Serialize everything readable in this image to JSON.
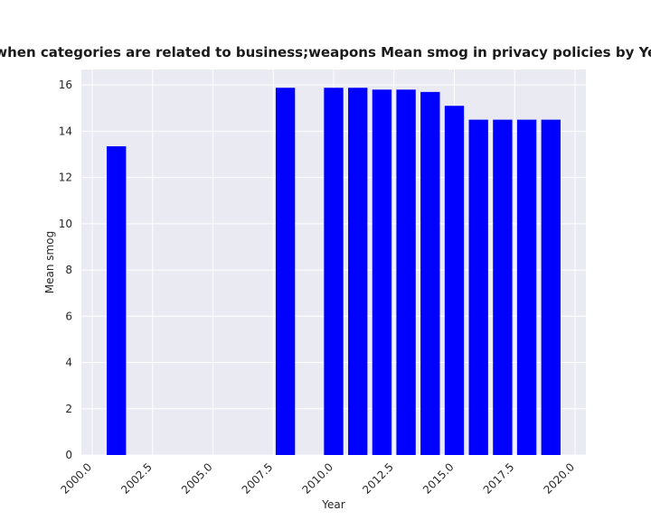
{
  "chart_data": {
    "type": "bar",
    "title": "when categories are related to business;weapons Mean smog in privacy policies by Year",
    "xlabel": "Year",
    "ylabel": "Mean smog",
    "x": [
      2001,
      2008,
      2010,
      2011,
      2012,
      2013,
      2014,
      2015,
      2016,
      2017,
      2018,
      2019
    ],
    "values": [
      13.35,
      15.88,
      15.88,
      15.88,
      15.8,
      15.8,
      15.7,
      15.1,
      14.5,
      14.5,
      14.5,
      14.5
    ],
    "xlim": [
      1999.55,
      2020.45
    ],
    "ylim": [
      0,
      16.67
    ],
    "xticks": [
      2000.0,
      2002.5,
      2005.0,
      2007.5,
      2010.0,
      2012.5,
      2015.0,
      2017.5,
      2020.0
    ],
    "xtick_labels": [
      "2000.0",
      "2002.5",
      "2005.0",
      "2007.5",
      "2010.0",
      "2012.5",
      "2015.0",
      "2017.5",
      "2020.0"
    ],
    "yticks": [
      0,
      2,
      4,
      6,
      8,
      10,
      12,
      14,
      16
    ],
    "ytick_labels": [
      "0",
      "2",
      "4",
      "6",
      "8",
      "10",
      "12",
      "14",
      "16"
    ],
    "bar_color": "#0000ff",
    "plot_background": "#eaeaf2",
    "grid": true,
    "grid_color": "#ffffff"
  }
}
